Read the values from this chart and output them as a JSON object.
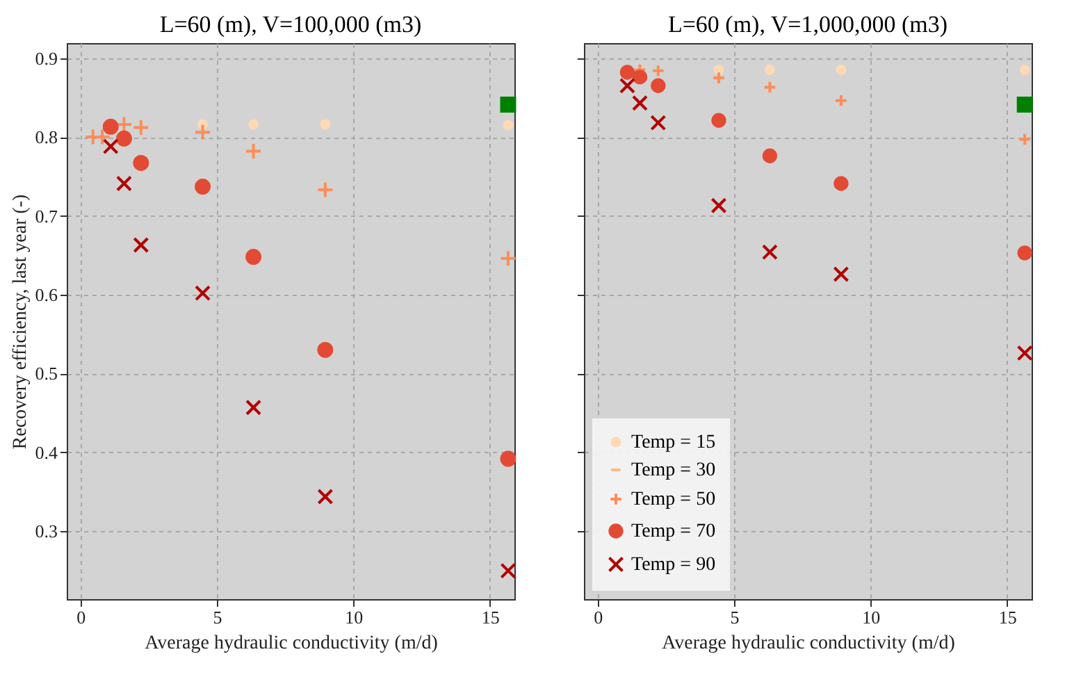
{
  "chart_data": [
    {
      "type": "scatter",
      "title": "L=60 (m), V=100,000 (m3)",
      "xlabel": "Average hydraulic conductivity (m/d)",
      "ylabel": "Recovery efficiency, last year (-)",
      "xlim": [
        -0.5,
        15.9
      ],
      "xticks": [
        0,
        5,
        10,
        15
      ],
      "ylim": [
        0.214,
        0.919
      ],
      "yticks": [
        0.3,
        0.4,
        0.5,
        0.6,
        0.7,
        0.8,
        0.9
      ],
      "grid": true,
      "legend": false,
      "series": [
        {
          "color": "#fdd9b4",
          "marker": "circle",
          "x": [
            4.48,
            6.34,
            8.97,
            15.67
          ],
          "values": [
            0.816,
            0.816,
            0.816,
            0.815
          ]
        },
        {
          "color": "#fc8d59",
          "marker": "cross",
          "x": [
            0.46,
            0.8,
            1.6,
            2.22,
            4.48,
            6.34,
            8.97,
            15.67
          ],
          "values": [
            0.8,
            0.8,
            0.816,
            0.812,
            0.806,
            0.782,
            0.733,
            0.646
          ]
        },
        {
          "color": "#e34a33",
          "marker": "circle",
          "x": [
            1.11,
            1.6,
            2.22,
            4.48,
            6.34,
            8.97,
            15.67
          ],
          "values": [
            0.813,
            0.798,
            0.767,
            0.737,
            0.648,
            0.53,
            0.392
          ]
        },
        {
          "color": "#b30000",
          "marker": "x",
          "x": [
            1.11,
            1.6,
            2.22,
            4.48,
            6.34,
            8.97,
            15.67
          ],
          "values": [
            0.788,
            0.741,
            0.663,
            0.602,
            0.457,
            0.344,
            0.25
          ]
        },
        {
          "color": "#008000",
          "marker": "square",
          "x": [
            15.67
          ],
          "values": [
            0.841
          ]
        }
      ]
    },
    {
      "type": "scatter",
      "title": "L=60 (m), V=1,000,000 (m3)",
      "xlabel": "Average hydraulic conductivity (m/d)",
      "xlim": [
        -0.5,
        15.9
      ],
      "xticks": [
        0,
        5,
        10,
        15
      ],
      "ylim": [
        0.214,
        0.919
      ],
      "yticks": [
        0.3,
        0.4,
        0.5,
        0.6,
        0.7,
        0.8,
        0.9
      ],
      "grid": true,
      "legend": "bottom left",
      "tick_labels": "x",
      "series": [
        {
          "name": "Temp = 15",
          "color": "#fdd9b4",
          "marker": "circle",
          "x": [
            4.44,
            6.31,
            8.92,
            15.65
          ],
          "values": [
            0.885,
            0.885,
            0.885,
            0.885
          ]
        },
        {
          "name": "Temp = 30",
          "color": "#fdbb84"
        },
        {
          "name": "Temp = 50",
          "color": "#fc8d59",
          "marker": "cross",
          "x": [
            1.55,
            2.22,
            4.44,
            6.31,
            8.92,
            15.65
          ],
          "values": [
            0.885,
            0.884,
            0.875,
            0.863,
            0.846,
            0.797
          ]
        },
        {
          "name": "Temp = 70",
          "color": "#e34a33",
          "marker": "circle",
          "x": [
            1.09,
            1.55,
            2.22,
            4.44,
            6.31,
            8.92,
            15.65
          ],
          "values": [
            0.882,
            0.876,
            0.865,
            0.821,
            0.776,
            0.741,
            0.653
          ]
        },
        {
          "name": "Temp = 90",
          "color": "#b30000",
          "marker": "x",
          "x": [
            1.09,
            1.55,
            2.22,
            4.44,
            6.31,
            8.92,
            15.65
          ],
          "values": [
            0.865,
            0.843,
            0.818,
            0.713,
            0.654,
            0.626,
            0.526
          ]
        },
        {
          "color": "#008000",
          "marker": "square",
          "x": [
            15.65
          ],
          "values": [
            0.841
          ]
        }
      ]
    }
  ]
}
